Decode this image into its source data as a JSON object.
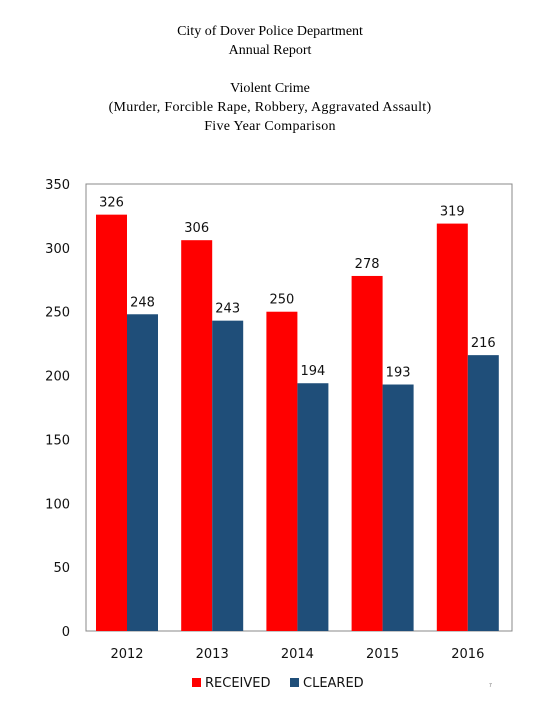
{
  "header": {
    "org": "City of Dover Police Department",
    "report": "Annual Report",
    "title": "Violent Crime",
    "subtitle": "(Murder, Forcible Rape, Robbery, Aggravated Assault)",
    "comparison": "Five Year Comparison"
  },
  "page_mark": "7",
  "colors": {
    "received": "#ff0000",
    "cleared": "#1f4e79"
  },
  "chart_data": {
    "type": "bar",
    "title": "Violent Crime",
    "subtitle": "(Murder, Forcible Rape, Robbery, Aggravated Assault)",
    "xlabel": "",
    "ylabel": "",
    "categories": [
      "2012",
      "2013",
      "2014",
      "2015",
      "2016"
    ],
    "series": [
      {
        "name": "RECEIVED",
        "values": [
          326,
          306,
          250,
          278,
          319
        ],
        "color": "#ff0000"
      },
      {
        "name": "CLEARED",
        "values": [
          248,
          243,
          194,
          193,
          216
        ],
        "color": "#1f4e79"
      }
    ],
    "ylim": [
      0,
      350
    ],
    "yticks": [
      0,
      50,
      100,
      150,
      200,
      250,
      300,
      350
    ],
    "grid": false,
    "legend": "bottom"
  }
}
